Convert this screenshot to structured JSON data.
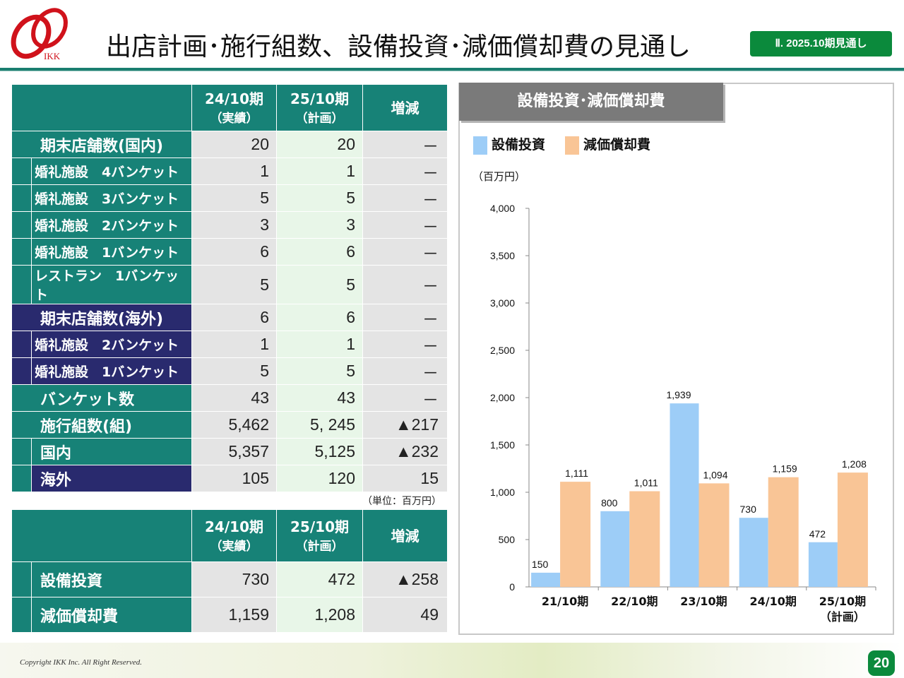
{
  "header": {
    "logo_text": "IKK",
    "title": "出店計画･施行組数、設備投資･減価償却費の見通し",
    "badge": "Ⅱ. 2025.10期見通し"
  },
  "store_table": {
    "columns": [
      {
        "main": "24/10期",
        "sub": "（実績）"
      },
      {
        "main": "25/10期",
        "sub": "（計画）"
      },
      {
        "main": "増減",
        "sub": ""
      }
    ],
    "rows": [
      {
        "label": "期末店舗数(国内)",
        "v1": "20",
        "v2": "20",
        "v3": "－"
      },
      {
        "label": "婚礼施設　4バンケット",
        "v1": "1",
        "v2": "1",
        "v3": "－"
      },
      {
        "label": "婚礼施設　3バンケット",
        "v1": "5",
        "v2": "5",
        "v3": "－"
      },
      {
        "label": "婚礼施設　2バンケット",
        "v1": "3",
        "v2": "3",
        "v3": "－"
      },
      {
        "label": "婚礼施設　1バンケット",
        "v1": "6",
        "v2": "6",
        "v3": "－"
      },
      {
        "label": "レストラン　1バンケット",
        "v1": "5",
        "v2": "5",
        "v3": "－"
      },
      {
        "label": "期末店舗数(海外)",
        "v1": "6",
        "v2": "6",
        "v3": "－"
      },
      {
        "label": "婚礼施設　2バンケット",
        "v1": "1",
        "v2": "1",
        "v3": "－"
      },
      {
        "label": "婚礼施設　1バンケット",
        "v1": "5",
        "v2": "5",
        "v3": "－"
      },
      {
        "label": "バンケット数",
        "v1": "43",
        "v2": "43",
        "v3": "－"
      },
      {
        "label": "施行組数(組)",
        "v1": "5,462",
        "v2": "5, 245",
        "v3": "▲217"
      },
      {
        "label": "国内",
        "v1": "5,357",
        "v2": "5,125",
        "v3": "▲232"
      },
      {
        "label": "海外",
        "v1": "105",
        "v2": "120",
        "v3": "15"
      }
    ]
  },
  "unit_note": "（単位：百万円）",
  "capex_table": {
    "columns": [
      {
        "main": "24/10期",
        "sub": "（実績）"
      },
      {
        "main": "25/10期",
        "sub": "（計画）"
      },
      {
        "main": "増減",
        "sub": ""
      }
    ],
    "rows": [
      {
        "label": "設備投資",
        "v1": "730",
        "v2": "472",
        "v3": "▲258"
      },
      {
        "label": "減価償却費",
        "v1": "1,159",
        "v2": "1,208",
        "v3": "49"
      }
    ]
  },
  "chart_panel": {
    "title": "設備投資･減価償却費",
    "unit": "（百万円）"
  },
  "chart_data": {
    "type": "bar",
    "categories": [
      "21/10期",
      "22/10期",
      "23/10期",
      "24/10期",
      "25/10期\n（計画）"
    ],
    "series": [
      {
        "name": "設備投資",
        "values": [
          150,
          800,
          1939,
          730,
          472
        ],
        "labels": [
          "150",
          "800",
          "1,939",
          "730",
          "472"
        ],
        "color": "#9dcdf7"
      },
      {
        "name": "減価償却費",
        "values": [
          1111,
          1011,
          1094,
          1159,
          1208
        ],
        "labels": [
          "1,111",
          "1,011",
          "1,094",
          "1,159",
          "1,208"
        ],
        "color": "#f9c596"
      }
    ],
    "ylim": [
      0,
      4000
    ],
    "yticks": [
      "0",
      "500",
      "1,000",
      "1,500",
      "2,000",
      "2,500",
      "3,000",
      "3,500",
      "4,000"
    ],
    "ytick_values": [
      0,
      500,
      1000,
      1500,
      2000,
      2500,
      3000,
      3500,
      4000
    ],
    "legend_position": "top-left",
    "grid": false
  },
  "footer": {
    "copyright": "Copyright IKK Inc. All Right Reserved.",
    "page_number": "20"
  },
  "colors": {
    "teal": "#178277",
    "navy": "#292a6e",
    "green_badge": "#0b8a3c",
    "logo_red": "#d0121b"
  }
}
